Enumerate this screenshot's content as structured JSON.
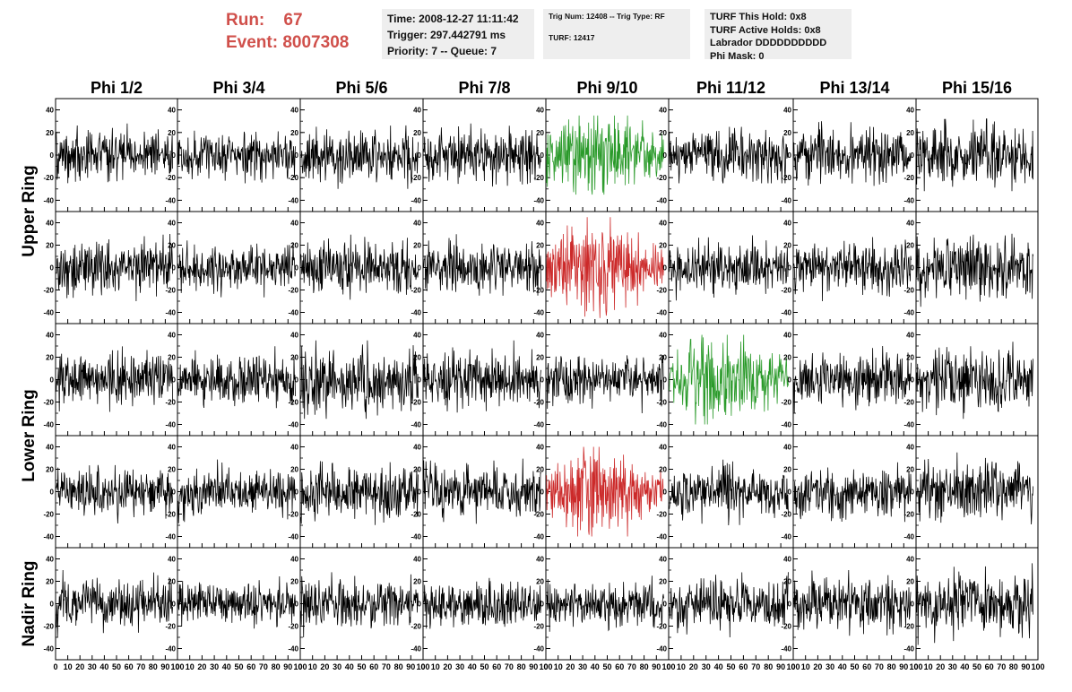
{
  "header": {
    "run_label": "Run:",
    "run_value": "67",
    "event_label": "Event:",
    "event_value": "8007308"
  },
  "info_time": {
    "line1": "Time: 2008-12-27 11:11:42",
    "line2": "Trigger: 297.442791 ms",
    "line3": "Priority: 7 -- Queue: 7"
  },
  "info_trig": {
    "line1": "Trig Num: 12408 -- Trig Type: RF",
    "line2": "TURF: 12417"
  },
  "info_turf": {
    "line1": "TURF This Hold: 0x8",
    "line2": "TURF Active Holds: 0x8",
    "line3": "Labrador DDDDDDDDDD",
    "line4": "Phi Mask: 0"
  },
  "colors": {
    "trace": "#000000",
    "highlight_green": "#2a9a2a",
    "highlight_red": "#cc2a2a",
    "header_red": "#d0504b",
    "info_bg": "#eeeeee"
  },
  "chart_data": {
    "type": "line",
    "columns": [
      "Phi 1/2",
      "Phi 3/4",
      "Phi 5/6",
      "Phi 7/8",
      "Phi 9/10",
      "Phi 11/12",
      "Phi 13/14",
      "Phi 15/16"
    ],
    "rows": [
      "Upper Ring",
      "Upper Ring",
      "Lower Ring",
      "Lower Ring",
      "Nadir Ring"
    ],
    "row_labels": [
      "Upper Ring",
      "Lower Ring",
      "Nadir Ring"
    ],
    "xlim": [
      0,
      100
    ],
    "ylim": [
      -50,
      50
    ],
    "yticks": [
      -40,
      -20,
      0,
      20,
      40
    ],
    "xticks": [
      0,
      10,
      20,
      30,
      40,
      50,
      60,
      70,
      80,
      90,
      100
    ],
    "xtick_labels": [
      "0",
      "10",
      "20",
      "30",
      "40",
      "50",
      "60",
      "70",
      "80",
      "90",
      "100"
    ],
    "ytick_labels": [
      "-40",
      "-20",
      "0",
      "20",
      "40"
    ],
    "samples_per_trace": 260,
    "highlighted_traces": [
      {
        "row": 0,
        "col": 4,
        "color": "green"
      },
      {
        "row": 1,
        "col": 4,
        "color": "red"
      },
      {
        "row": 2,
        "col": 5,
        "color": "green"
      },
      {
        "row": 3,
        "col": 4,
        "color": "red"
      }
    ],
    "traces": [
      [
        {
          "amp": 11,
          "peak": 28
        },
        {
          "amp": 10,
          "peak": 25
        },
        {
          "amp": 12,
          "peak": 30
        },
        {
          "amp": 11,
          "peak": 28
        },
        {
          "amp": 15,
          "peak": 35
        },
        {
          "amp": 11,
          "peak": 25
        },
        {
          "amp": 13,
          "peak": 30
        },
        {
          "amp": 14,
          "peak": 32
        }
      ],
      [
        {
          "amp": 12,
          "peak": 30
        },
        {
          "amp": 11,
          "peak": 28
        },
        {
          "amp": 12,
          "peak": 30
        },
        {
          "amp": 11,
          "peak": 30
        },
        {
          "amp": 16,
          "peak": 45
        },
        {
          "amp": 11,
          "peak": 30
        },
        {
          "amp": 11,
          "peak": 30
        },
        {
          "amp": 13,
          "peak": 35
        }
      ],
      [
        {
          "amp": 12,
          "peak": 30
        },
        {
          "amp": 11,
          "peak": 30
        },
        {
          "amp": 14,
          "peak": 35
        },
        {
          "amp": 12,
          "peak": 35
        },
        {
          "amp": 11,
          "peak": 30
        },
        {
          "amp": 15,
          "peak": 40
        },
        {
          "amp": 12,
          "peak": 30
        },
        {
          "amp": 13,
          "peak": 35
        }
      ],
      [
        {
          "amp": 11,
          "peak": 30
        },
        {
          "amp": 11,
          "peak": 30
        },
        {
          "amp": 13,
          "peak": 35
        },
        {
          "amp": 12,
          "peak": 30
        },
        {
          "amp": 15,
          "peak": 40
        },
        {
          "amp": 11,
          "peak": 30
        },
        {
          "amp": 11,
          "peak": 30
        },
        {
          "amp": 13,
          "peak": 35
        }
      ],
      [
        {
          "amp": 11,
          "peak": 30
        },
        {
          "amp": 9,
          "peak": 25
        },
        {
          "amp": 11,
          "peak": 30
        },
        {
          "amp": 10,
          "peak": 25
        },
        {
          "amp": 10,
          "peak": 25
        },
        {
          "amp": 12,
          "peak": 30
        },
        {
          "amp": 12,
          "peak": 30
        },
        {
          "amp": 14,
          "peak": 40
        }
      ]
    ]
  }
}
